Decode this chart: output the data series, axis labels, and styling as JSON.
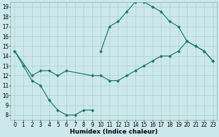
{
  "line1_x": [
    0,
    1,
    2,
    3,
    4,
    5,
    6,
    7,
    8,
    9
  ],
  "line1_y": [
    14.5,
    13.0,
    11.5,
    11.0,
    9.5,
    8.5,
    8.0,
    8.0,
    8.5,
    8.5
  ],
  "line2_x": [
    10,
    11,
    12,
    13,
    14,
    15,
    16,
    17,
    18,
    19,
    20,
    21,
    22,
    23
  ],
  "line2_y": [
    14.5,
    17.0,
    17.5,
    18.5,
    19.5,
    19.5,
    19.0,
    18.5,
    17.5,
    17.0,
    15.5,
    15.0,
    14.5,
    13.5
  ],
  "line3_x": [
    0,
    2,
    3,
    4,
    5,
    6,
    9,
    10,
    11,
    12,
    13,
    14,
    15,
    16,
    17,
    18,
    19,
    20,
    21,
    22,
    23
  ],
  "line3_y": [
    14.5,
    12.0,
    12.5,
    12.5,
    12.0,
    12.5,
    12.0,
    12.0,
    11.5,
    11.5,
    12.0,
    12.5,
    13.0,
    13.5,
    14.0,
    14.0,
    14.5,
    15.5,
    15.0,
    14.5,
    13.5
  ],
  "line_color": "#1a7a6e",
  "bg_color": "#cce8ea",
  "grid_color": "#aacdd0",
  "xlabel": "Humidex (Indice chaleur)",
  "xlim": [
    -0.5,
    23.5
  ],
  "ylim": [
    7.5,
    19.5
  ],
  "xticks": [
    0,
    1,
    2,
    3,
    4,
    5,
    6,
    7,
    8,
    9,
    10,
    11,
    12,
    13,
    14,
    15,
    16,
    17,
    18,
    19,
    20,
    21,
    22,
    23
  ],
  "yticks": [
    8,
    9,
    10,
    11,
    12,
    13,
    14,
    15,
    16,
    17,
    18,
    19
  ],
  "tick_fontsize": 5.5,
  "xlabel_fontsize": 6.5,
  "marker": "D",
  "markersize": 2.0,
  "linewidth": 0.9
}
